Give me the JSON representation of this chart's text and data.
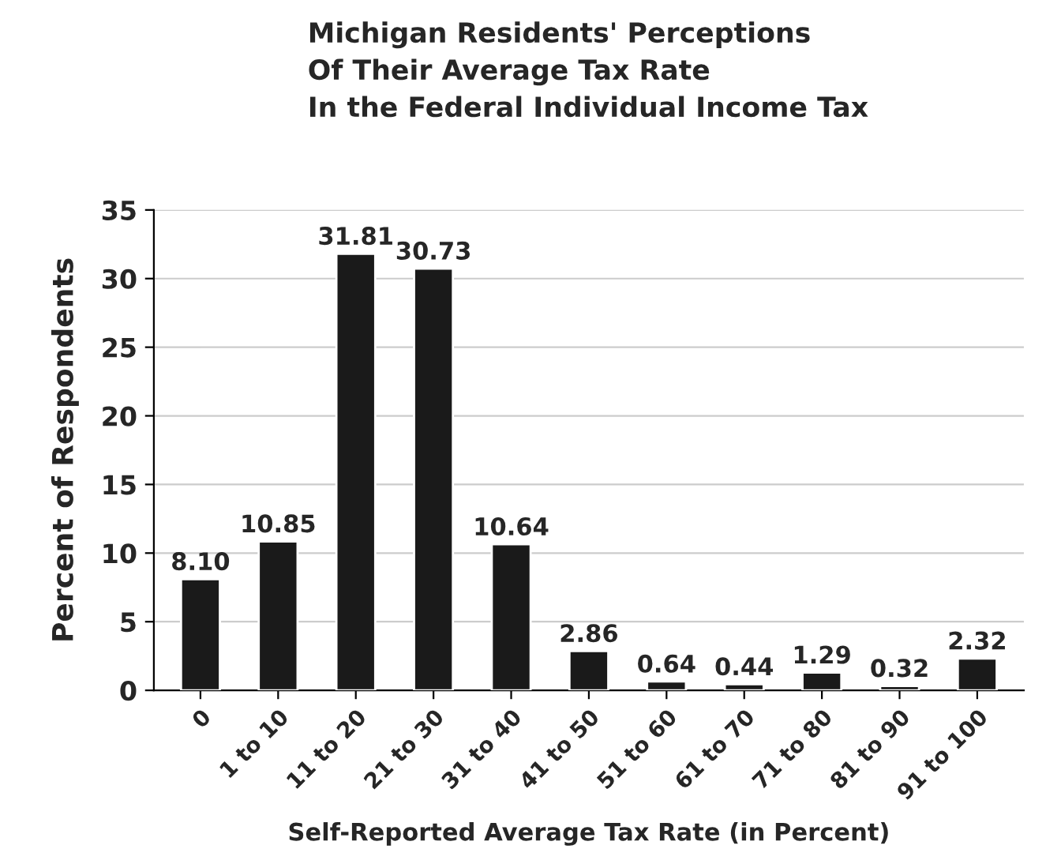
{
  "chart_data": {
    "type": "bar",
    "title": "Michigan Residents' Perceptions\nOf Their Average Tax Rate\nIn the Federal Individual Income Tax",
    "xlabel": "Self-Reported Average Tax Rate (in Percent)",
    "ylabel": "Percent of Respondents",
    "categories": [
      "0",
      "1 to 10",
      "11 to 20",
      "21 to 30",
      "31 to 40",
      "41 to 50",
      "51 to 60",
      "61 to 70",
      "71 to 80",
      "81 to 90",
      "91 to 100"
    ],
    "values": [
      8.1,
      10.85,
      31.81,
      30.73,
      10.64,
      2.86,
      0.64,
      0.44,
      1.29,
      0.32,
      2.32
    ],
    "value_labels": [
      "8.10",
      "10.85",
      "31.81",
      "30.73",
      "10.64",
      "2.86",
      "0.64",
      "0.44",
      "1.29",
      "0.32",
      "2.32"
    ],
    "color": "#1a1a1a",
    "ylim": [
      0,
      35
    ],
    "yticks": [
      0,
      5,
      10,
      15,
      20,
      25,
      30,
      35
    ],
    "grid": "y",
    "legend": false
  }
}
